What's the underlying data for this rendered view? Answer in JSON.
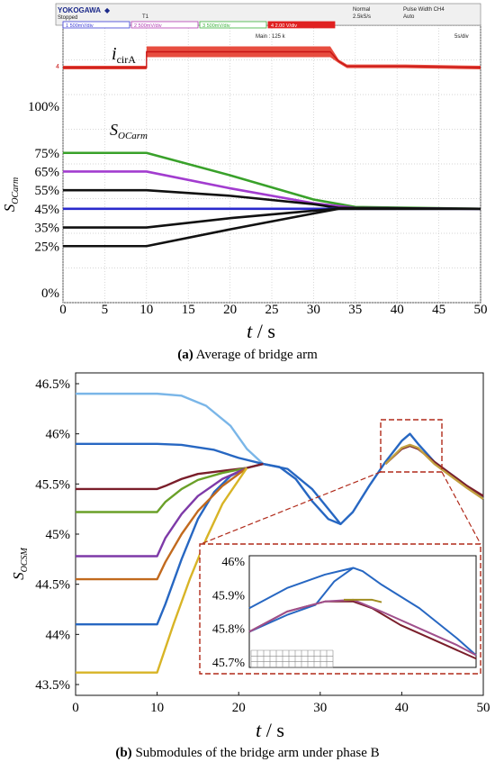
{
  "panel_a": {
    "scope": {
      "brand": "YOKOGAWA",
      "state": "Stopped",
      "mode": "Normal",
      "rate": "2.5kS/s",
      "trigger_type": "Pulse Width CH4",
      "trigger_mode": "Auto",
      "main_points": "Main : 125 k",
      "time_div": "5s/div",
      "trigger_marker": "T1",
      "channels": [
        {
          "label": "1",
          "scale": "500mV/div",
          "color": "#3b3bd6"
        },
        {
          "label": "2",
          "scale": "500mV/div",
          "color": "#b23bb2"
        },
        {
          "label": "3",
          "scale": "500mV/div",
          "color": "#3bb23b"
        },
        {
          "label": "4",
          "scale": "2.00 V/div",
          "color": "#e02020"
        }
      ]
    },
    "trace_label_main": "i",
    "trace_label_sub": "cirA",
    "soc_label_main": "S",
    "soc_label_sub": "OCarm",
    "ylabel_main": "S",
    "ylabel_sub": "OCarm",
    "xlabel_italic": "t",
    "xlabel_unit": " / s",
    "caption_bold": "(a)",
    "caption_text": " Average of bridge arm"
  },
  "panel_b": {
    "ylabel_main": "S",
    "ylabel_sub": "OCSM",
    "xlabel_italic": "t",
    "xlabel_unit": " / s",
    "caption_bold": "(b)",
    "caption_text": " Submodules of the bridge arm under phase B"
  },
  "chart_data": [
    {
      "type": "line",
      "title": "",
      "xlabel": "t / s",
      "ylabel": "SOCarm",
      "xlim": [
        0,
        50
      ],
      "ylim": [
        0,
        100
      ],
      "x_ticks": [
        "0",
        "5",
        "10",
        "15",
        "20",
        "25",
        "30",
        "35",
        "40",
        "45",
        "50"
      ],
      "y_ticks": [
        {
          "v": 0,
          "label": "0%"
        },
        {
          "v": 25,
          "label": "25%"
        },
        {
          "v": 35,
          "label": "35%"
        },
        {
          "v": 45,
          "label": "45%"
        },
        {
          "v": 55,
          "label": "55%"
        },
        {
          "v": 65,
          "label": "65%"
        },
        {
          "v": 75,
          "label": "75%"
        },
        {
          "v": 100,
          "label": "100%"
        }
      ],
      "grid": true,
      "current_trace": {
        "name": "icirA",
        "color": "#c81414",
        "points": [
          [
            0,
            -1
          ],
          [
            10,
            -1
          ],
          [
            10,
            1.5
          ],
          [
            32,
            1.5
          ],
          [
            33,
            0
          ],
          [
            34,
            -0.8
          ],
          [
            41,
            -0.8
          ],
          [
            50,
            -1
          ]
        ]
      },
      "series": [
        {
          "color": "#39a12a",
          "points": [
            [
              0,
              75
            ],
            [
              10,
              75
            ],
            [
              20,
              63
            ],
            [
              30,
              50
            ],
            [
              35,
              46
            ],
            [
              50,
              45
            ]
          ]
        },
        {
          "color": "#a23ccf",
          "points": [
            [
              0,
              65
            ],
            [
              10,
              65
            ],
            [
              20,
              56
            ],
            [
              30,
              48
            ],
            [
              35,
              45.5
            ],
            [
              50,
              45
            ]
          ]
        },
        {
          "color": "#111111",
          "points": [
            [
              0,
              55
            ],
            [
              10,
              55
            ],
            [
              20,
              52
            ],
            [
              30,
              47.5
            ],
            [
              33,
              45.5
            ],
            [
              50,
              45
            ]
          ]
        },
        {
          "color": "#2929cc",
          "points": [
            [
              0,
              45
            ],
            [
              10,
              45
            ],
            [
              50,
              45
            ]
          ]
        },
        {
          "color": "#111111",
          "points": [
            [
              0,
              35
            ],
            [
              10,
              35
            ],
            [
              20,
              40
            ],
            [
              30,
              44
            ],
            [
              33,
              45
            ],
            [
              50,
              45
            ]
          ]
        },
        {
          "color": "#111111",
          "points": [
            [
              0,
              25
            ],
            [
              10,
              25
            ],
            [
              20,
              34
            ],
            [
              30,
              42.5
            ],
            [
              33,
              45
            ],
            [
              50,
              45
            ]
          ]
        }
      ]
    },
    {
      "type": "line",
      "title": "",
      "xlabel": "t / s",
      "ylabel": "SOCSM",
      "xlim": [
        0,
        50
      ],
      "ylim": [
        43.5,
        46.5
      ],
      "x_ticks": [
        "0",
        "10",
        "20",
        "30",
        "40",
        "50"
      ],
      "y_ticks": [
        {
          "v": 43.5,
          "label": "43.5%"
        },
        {
          "v": 44,
          "label": "44%"
        },
        {
          "v": 44.5,
          "label": "44.5%"
        },
        {
          "v": 45,
          "label": "45%"
        },
        {
          "v": 45.5,
          "label": "45.5%"
        },
        {
          "v": 46,
          "label": "46%"
        },
        {
          "v": 46.5,
          "label": "46.5%"
        }
      ],
      "series": [
        {
          "color": "#7ab6e8",
          "points": [
            [
              0,
              46.4
            ],
            [
              10,
              46.4
            ],
            [
              13,
              46.38
            ],
            [
              16,
              46.28
            ],
            [
              19,
              46.08
            ],
            [
              21,
              45.85
            ],
            [
              23,
              45.7
            ]
          ]
        },
        {
          "color": "#2767c2",
          "points": [
            [
              0,
              45.9
            ],
            [
              10,
              45.9
            ],
            [
              13,
              45.89
            ],
            [
              17,
              45.84
            ],
            [
              20,
              45.76
            ],
            [
              23,
              45.7
            ],
            [
              26,
              45.65
            ],
            [
              29,
              45.45
            ],
            [
              31,
              45.25
            ],
            [
              32.5,
              45.1
            ],
            [
              34,
              45.22
            ],
            [
              36,
              45.48
            ],
            [
              38,
              45.72
            ],
            [
              40,
              45.93
            ],
            [
              41,
              46.0
            ],
            [
              42,
              45.9
            ],
            [
              44,
              45.72
            ],
            [
              46,
              45.6
            ],
            [
              48,
              45.48
            ],
            [
              50,
              45.35
            ]
          ]
        },
        {
          "color": "#2767c2",
          "points": [
            [
              0,
              44.1
            ],
            [
              10,
              44.1
            ],
            [
              11,
              44.3
            ],
            [
              13,
              44.75
            ],
            [
              15,
              45.15
            ],
            [
              17,
              45.42
            ],
            [
              19,
              45.58
            ],
            [
              21,
              45.66
            ],
            [
              23,
              45.7
            ],
            [
              25,
              45.67
            ],
            [
              27,
              45.55
            ],
            [
              29,
              45.33
            ],
            [
              31,
              45.15
            ],
            [
              32.5,
              45.1
            ]
          ]
        },
        {
          "color": "#7a1e2a",
          "points": [
            [
              0,
              45.45
            ],
            [
              10,
              45.45
            ],
            [
              11,
              45.48
            ],
            [
              13,
              45.55
            ],
            [
              15,
              45.6
            ],
            [
              18,
              45.63
            ],
            [
              21,
              45.66
            ],
            [
              23,
              45.7
            ]
          ]
        },
        {
          "color": "#6aa028",
          "points": [
            [
              0,
              45.22
            ],
            [
              10,
              45.22
            ],
            [
              11,
              45.32
            ],
            [
              13,
              45.45
            ],
            [
              15,
              45.54
            ],
            [
              18,
              45.61
            ],
            [
              21,
              45.66
            ]
          ]
        },
        {
          "color": "#7e3aa8",
          "points": [
            [
              0,
              44.78
            ],
            [
              10,
              44.78
            ],
            [
              11,
              44.96
            ],
            [
              13,
              45.2
            ],
            [
              15,
              45.38
            ],
            [
              18,
              45.55
            ],
            [
              21,
              45.66
            ]
          ]
        },
        {
          "color": "#c26a1e",
          "points": [
            [
              0,
              44.55
            ],
            [
              10,
              44.55
            ],
            [
              11,
              44.72
            ],
            [
              13,
              45.0
            ],
            [
              15,
              45.23
            ],
            [
              18,
              45.48
            ],
            [
              21,
              45.66
            ]
          ]
        },
        {
          "color": "#d8b426",
          "points": [
            [
              0,
              43.62
            ],
            [
              10,
              43.62
            ],
            [
              12,
              44.1
            ],
            [
              14,
              44.55
            ],
            [
              16,
              44.95
            ],
            [
              18,
              45.3
            ],
            [
              21,
              45.66
            ]
          ]
        },
        {
          "color": "#7a1e2a",
          "points": [
            [
              38,
              45.7
            ],
            [
              40,
              45.85
            ],
            [
              41,
              45.88
            ],
            [
              42,
              45.85
            ],
            [
              44,
              45.72
            ],
            [
              46,
              45.6
            ],
            [
              48,
              45.48
            ],
            [
              50,
              45.38
            ]
          ]
        },
        {
          "color": "#c2a040",
          "points": [
            [
              38,
              45.7
            ],
            [
              40,
              45.86
            ],
            [
              41,
              45.89
            ],
            [
              42,
              45.86
            ],
            [
              44,
              45.7
            ],
            [
              46,
              45.58
            ],
            [
              48,
              45.46
            ],
            [
              50,
              45.35
            ]
          ]
        }
      ],
      "inset": {
        "xlim": [
          38,
          50
        ],
        "ylim": [
          45.7,
          46.0
        ],
        "y_ticks": [
          {
            "v": 45.7,
            "label": "45.7%"
          },
          {
            "v": 45.8,
            "label": "45.8%"
          },
          {
            "v": 45.9,
            "label": "45.9%"
          },
          {
            "v": 46.0,
            "label": "46%"
          }
        ],
        "series": [
          {
            "color": "#2767c2",
            "points": [
              [
                38,
                45.86
              ],
              [
                40,
                45.92
              ],
              [
                42,
                45.96
              ],
              [
                43.5,
                45.98
              ],
              [
                44,
                45.97
              ],
              [
                45,
                45.93
              ],
              [
                47,
                45.86
              ],
              [
                49,
                45.77
              ],
              [
                50,
                45.72
              ]
            ]
          },
          {
            "color": "#2767c2",
            "points": [
              [
                38,
                45.79
              ],
              [
                40,
                45.84
              ],
              [
                41.5,
                45.87
              ],
              [
                42.5,
                45.94
              ],
              [
                43.5,
                45.98
              ]
            ]
          },
          {
            "color": "#7a1e2a",
            "points": [
              [
                38,
                45.79
              ],
              [
                40,
                45.85
              ],
              [
                42,
                45.88
              ],
              [
                43.5,
                45.88
              ],
              [
                44.5,
                45.86
              ],
              [
                46,
                45.81
              ],
              [
                48,
                45.76
              ],
              [
                50,
                45.71
              ]
            ]
          },
          {
            "color": "#a0508c",
            "points": [
              [
                38,
                45.79
              ],
              [
                40,
                45.85
              ],
              [
                42,
                45.88
              ],
              [
                43.5,
                45.885
              ],
              [
                45,
                45.85
              ],
              [
                47,
                45.8
              ],
              [
                49,
                45.75
              ],
              [
                50,
                45.72
              ]
            ]
          },
          {
            "color": "#a08c20",
            "points": [
              [
                43,
                45.885
              ],
              [
                44.5,
                45.885
              ],
              [
                45,
                45.878
              ]
            ]
          }
        ]
      }
    }
  ]
}
